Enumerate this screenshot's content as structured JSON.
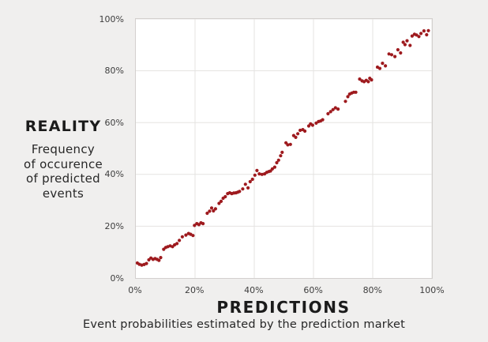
{
  "left_axis": {
    "title": "REALITY",
    "subtitle_lines": [
      "Frequency",
      "of occurence",
      "of predicted",
      "events"
    ]
  },
  "bottom_axis": {
    "title": "PREDICTIONS",
    "subtitle": "Event probabilities estimated by the prediction market"
  },
  "colors": {
    "background": "#f0efee",
    "plot_background": "#ffffff",
    "plot_border": "#d3d0ce",
    "grid": "#e5e3e1",
    "dot": "#9e1a1e",
    "title_text": "#1b1b1b",
    "tick_text": "#3d3d3d"
  },
  "chart_data": {
    "type": "scatter",
    "title": "",
    "xlabel": "PREDICTIONS — Event probabilities estimated by the prediction market",
    "ylabel": "REALITY — Frequency of occurence of predicted events",
    "xlim": [
      0,
      100
    ],
    "ylim": [
      0,
      100
    ],
    "x_ticks": [
      "0%",
      "20%",
      "40%",
      "60%",
      "80%",
      "100%"
    ],
    "y_ticks": [
      "0%",
      "20%",
      "40%",
      "60%",
      "80%",
      "100%"
    ],
    "grid": true,
    "legend": "none",
    "point_color": "#9e1a1e",
    "points": [
      [
        0.5,
        5.8
      ],
      [
        1.2,
        5.3
      ],
      [
        2.0,
        5.0
      ],
      [
        2.8,
        5.2
      ],
      [
        3.6,
        5.6
      ],
      [
        4.4,
        7.0
      ],
      [
        5.1,
        7.7
      ],
      [
        5.8,
        7.2
      ],
      [
        6.5,
        7.5
      ],
      [
        7.2,
        7.2
      ],
      [
        7.8,
        6.8
      ],
      [
        8.4,
        7.9
      ],
      [
        9.4,
        11.1
      ],
      [
        10.1,
        11.8
      ],
      [
        10.8,
        12.1
      ],
      [
        11.6,
        12.4
      ],
      [
        12.4,
        12.1
      ],
      [
        13.1,
        12.8
      ],
      [
        13.9,
        13.3
      ],
      [
        14.7,
        14.5
      ],
      [
        15.7,
        15.9
      ],
      [
        16.9,
        16.6
      ],
      [
        17.8,
        17.2
      ],
      [
        18.5,
        16.9
      ],
      [
        19.3,
        16.4
      ],
      [
        19.8,
        20.3
      ],
      [
        20.6,
        21.0
      ],
      [
        21.3,
        20.6
      ],
      [
        22.0,
        21.3
      ],
      [
        22.7,
        21.0
      ],
      [
        24.1,
        25.0
      ],
      [
        24.9,
        25.8
      ],
      [
        25.6,
        27.0
      ],
      [
        26.2,
        25.9
      ],
      [
        26.9,
        26.7
      ],
      [
        28.1,
        28.8
      ],
      [
        28.8,
        29.6
      ],
      [
        29.5,
        30.8
      ],
      [
        30.2,
        31.4
      ],
      [
        31.0,
        32.6
      ],
      [
        31.7,
        32.9
      ],
      [
        32.4,
        32.6
      ],
      [
        33.1,
        32.8
      ],
      [
        33.8,
        32.9
      ],
      [
        34.4,
        33.1
      ],
      [
        35.0,
        33.4
      ],
      [
        36.1,
        34.4
      ],
      [
        37.0,
        36.2
      ],
      [
        37.9,
        34.8
      ],
      [
        38.6,
        37.2
      ],
      [
        39.4,
        38.1
      ],
      [
        40.2,
        39.7
      ],
      [
        40.9,
        41.5
      ],
      [
        41.7,
        40.2
      ],
      [
        42.6,
        40.0
      ],
      [
        43.5,
        40.2
      ],
      [
        44.2,
        40.8
      ],
      [
        44.9,
        41.1
      ],
      [
        45.5,
        41.3
      ],
      [
        46.1,
        42.1
      ],
      [
        46.9,
        42.8
      ],
      [
        47.6,
        44.5
      ],
      [
        48.2,
        45.5
      ],
      [
        48.9,
        47.2
      ],
      [
        49.4,
        48.5
      ],
      [
        50.7,
        52.2
      ],
      [
        51.3,
        51.4
      ],
      [
        52.2,
        51.6
      ],
      [
        53.3,
        55.0
      ],
      [
        54.0,
        54.3
      ],
      [
        54.7,
        55.7
      ],
      [
        55.5,
        57.0
      ],
      [
        56.4,
        57.3
      ],
      [
        57.1,
        56.7
      ],
      [
        58.4,
        58.7
      ],
      [
        59.0,
        59.5
      ],
      [
        59.7,
        59.0
      ],
      [
        60.9,
        59.8
      ],
      [
        61.7,
        60.4
      ],
      [
        62.4,
        60.6
      ],
      [
        63.1,
        61.1
      ],
      [
        64.9,
        63.4
      ],
      [
        65.8,
        64.2
      ],
      [
        66.6,
        65.0
      ],
      [
        67.4,
        65.7
      ],
      [
        68.3,
        65.2
      ],
      [
        70.8,
        68.2
      ],
      [
        71.6,
        70.0
      ],
      [
        72.2,
        71.0
      ],
      [
        72.9,
        71.4
      ],
      [
        73.6,
        71.7
      ],
      [
        74.3,
        71.7
      ],
      [
        75.6,
        76.8
      ],
      [
        76.4,
        76.1
      ],
      [
        77.1,
        75.8
      ],
      [
        77.8,
        76.3
      ],
      [
        78.5,
        75.8
      ],
      [
        79.0,
        77.1
      ],
      [
        79.6,
        76.5
      ],
      [
        81.6,
        81.4
      ],
      [
        82.4,
        80.9
      ],
      [
        83.3,
        82.9
      ],
      [
        84.3,
        81.9
      ],
      [
        85.5,
        86.5
      ],
      [
        86.4,
        86.2
      ],
      [
        87.5,
        85.5
      ],
      [
        88.5,
        88.1
      ],
      [
        89.4,
        86.9
      ],
      [
        90.3,
        91.0
      ],
      [
        90.9,
        90.1
      ],
      [
        91.6,
        91.6
      ],
      [
        92.6,
        89.8
      ],
      [
        93.3,
        93.4
      ],
      [
        94.1,
        94.1
      ],
      [
        94.8,
        93.8
      ],
      [
        95.6,
        93.2
      ],
      [
        96.3,
        94.4
      ],
      [
        97.3,
        95.4
      ],
      [
        98.2,
        93.9
      ],
      [
        98.8,
        95.5
      ]
    ]
  }
}
